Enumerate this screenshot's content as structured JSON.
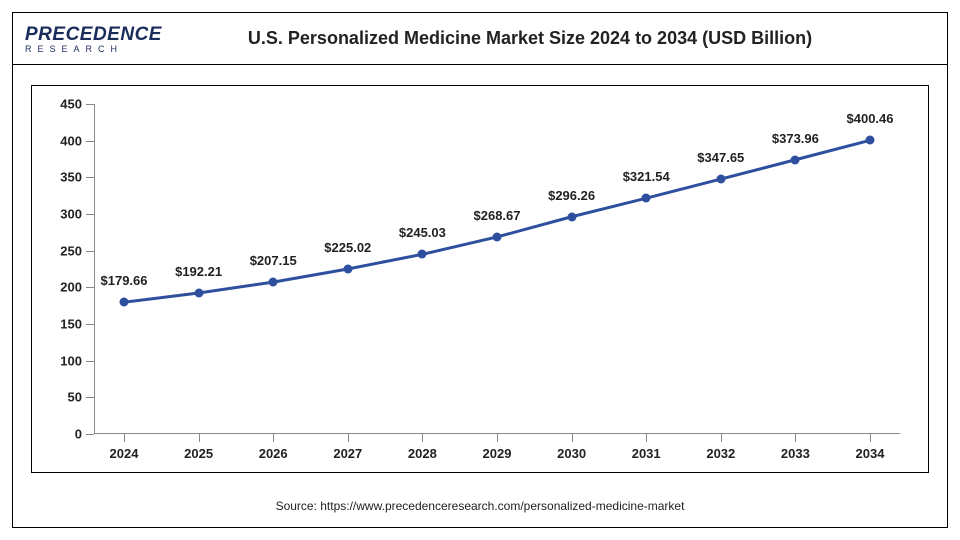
{
  "logo": {
    "brand": "PRECEDENCE",
    "sub": "RESEARCH"
  },
  "title": "U.S. Personalized Medicine Market Size 2024 to 2034 (USD Billion)",
  "source": "Source: https://www.precedenceresearch.com/personalized-medicine-market",
  "chart": {
    "type": "line",
    "years": [
      "2024",
      "2025",
      "2026",
      "2027",
      "2028",
      "2029",
      "2030",
      "2031",
      "2032",
      "2033",
      "2034"
    ],
    "values": [
      179.66,
      192.21,
      207.15,
      225.02,
      245.03,
      268.67,
      296.26,
      321.54,
      347.65,
      373.96,
      400.46
    ],
    "labels": [
      "$179.66",
      "$192.21",
      "$207.15",
      "$225.02",
      "$245.03",
      "$268.67",
      "$296.26",
      "$321.54",
      "$347.65",
      "$373.96",
      "$400.46"
    ],
    "ylim": [
      0,
      450
    ],
    "ytick_step": 50,
    "line_color": "#2d4f9e",
    "marker_color": "#2d4f9e",
    "line_width": 3,
    "marker_size": 9,
    "background_color": "#ffffff",
    "axis_color": "#888888",
    "text_color": "#222222",
    "label_fontsize": 13,
    "tick_fontsize": 13
  }
}
